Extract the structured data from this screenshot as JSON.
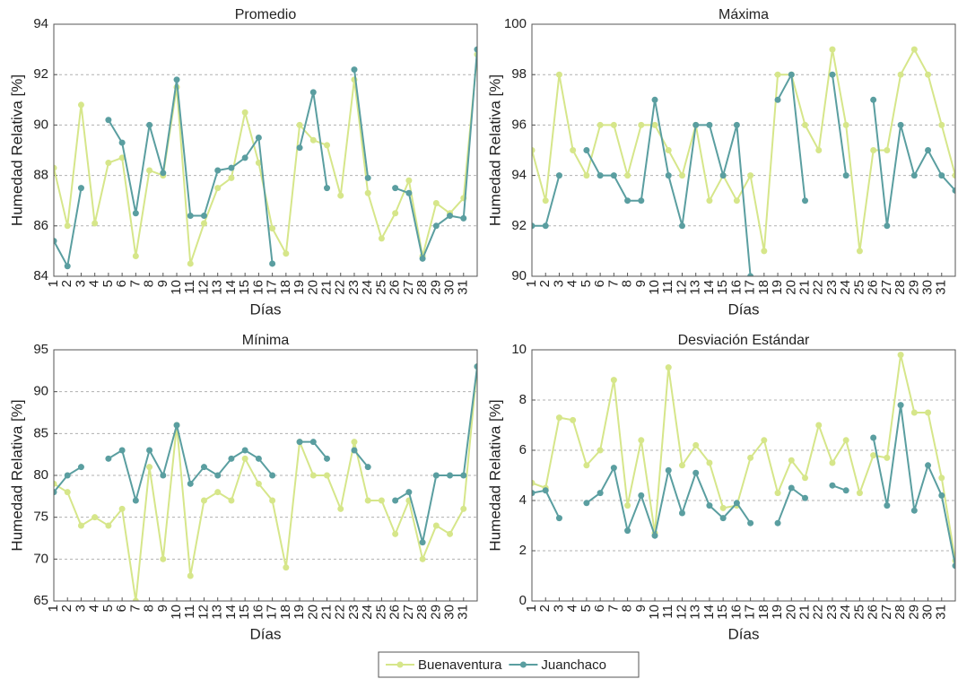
{
  "chart_data": [
    {
      "type": "line",
      "title": "Promedio",
      "xlabel": "Días",
      "ylabel": "Humedad Relativa [%]",
      "x": [
        1,
        2,
        3,
        4,
        5,
        6,
        7,
        8,
        9,
        10,
        11,
        12,
        13,
        14,
        15,
        16,
        17,
        18,
        19,
        20,
        21,
        22,
        23,
        24,
        25,
        26,
        27,
        28,
        29,
        30,
        31,
        32
      ],
      "xlim": [
        1,
        32
      ],
      "xticks": [
        1,
        2,
        3,
        4,
        5,
        6,
        7,
        8,
        9,
        10,
        11,
        12,
        13,
        14,
        15,
        16,
        17,
        18,
        19,
        20,
        21,
        22,
        23,
        24,
        25,
        26,
        27,
        28,
        29,
        30,
        31
      ],
      "ylim": [
        84,
        94
      ],
      "yticks": [
        84,
        86,
        88,
        90,
        92,
        94
      ],
      "grid": true,
      "series": [
        {
          "name": "Buenaventura",
          "color": "#d6e68a",
          "values": [
            88.3,
            86.0,
            90.8,
            86.1,
            88.5,
            88.7,
            84.8,
            88.2,
            88.0,
            91.5,
            84.5,
            86.1,
            87.5,
            87.9,
            90.5,
            88.5,
            85.9,
            84.9,
            90.0,
            89.4,
            89.2,
            87.2,
            91.8,
            87.3,
            85.5,
            86.5,
            87.8,
            84.8,
            86.9,
            86.5,
            87.1,
            92.8
          ]
        },
        {
          "name": "Juanchaco",
          "color": "#5a9ea0",
          "values": [
            85.4,
            84.4,
            87.5,
            null,
            90.2,
            89.3,
            86.5,
            90.0,
            88.1,
            91.8,
            86.4,
            86.4,
            88.2,
            88.3,
            88.7,
            89.5,
            84.5,
            null,
            89.1,
            91.3,
            87.5,
            null,
            92.2,
            87.9,
            null,
            87.5,
            87.3,
            84.7,
            86.0,
            86.4,
            86.3,
            93.0
          ]
        }
      ]
    },
    {
      "type": "line",
      "title": "Máxima",
      "xlabel": "Días",
      "ylabel": "Humedad Relativa [%]",
      "x": [
        1,
        2,
        3,
        4,
        5,
        6,
        7,
        8,
        9,
        10,
        11,
        12,
        13,
        14,
        15,
        16,
        17,
        18,
        19,
        20,
        21,
        22,
        23,
        24,
        25,
        26,
        27,
        28,
        29,
        30,
        31,
        32
      ],
      "xlim": [
        1,
        32
      ],
      "xticks": [
        1,
        2,
        3,
        4,
        5,
        6,
        7,
        8,
        9,
        10,
        11,
        12,
        13,
        14,
        15,
        16,
        17,
        18,
        19,
        20,
        21,
        22,
        23,
        24,
        25,
        26,
        27,
        28,
        29,
        30,
        31
      ],
      "ylim": [
        90,
        100
      ],
      "yticks": [
        90,
        92,
        94,
        96,
        98,
        100
      ],
      "grid": true,
      "series": [
        {
          "name": "Buenaventura",
          "color": "#d6e68a",
          "values": [
            95,
            93,
            98,
            95,
            94,
            96,
            96,
            94,
            96,
            96,
            95,
            94,
            96,
            93,
            94,
            93,
            94,
            91,
            98,
            98,
            96,
            95,
            99,
            96,
            91,
            95,
            95,
            98,
            99,
            98,
            96,
            94
          ]
        },
        {
          "name": "Juanchaco",
          "color": "#5a9ea0",
          "values": [
            92,
            92,
            94,
            null,
            95,
            94,
            94,
            93,
            93,
            97,
            94,
            92,
            96,
            96,
            94,
            96,
            90,
            null,
            97,
            98,
            93,
            null,
            98,
            94,
            null,
            97,
            92,
            96,
            94,
            95,
            94,
            93.4
          ]
        }
      ]
    },
    {
      "type": "line",
      "title": "Mínima",
      "xlabel": "Días",
      "ylabel": "Humedad Relativa [%]",
      "x": [
        1,
        2,
        3,
        4,
        5,
        6,
        7,
        8,
        9,
        10,
        11,
        12,
        13,
        14,
        15,
        16,
        17,
        18,
        19,
        20,
        21,
        22,
        23,
        24,
        25,
        26,
        27,
        28,
        29,
        30,
        31,
        32
      ],
      "xlim": [
        1,
        32
      ],
      "xticks": [
        1,
        2,
        3,
        4,
        5,
        6,
        7,
        8,
        9,
        10,
        11,
        12,
        13,
        14,
        15,
        16,
        17,
        18,
        19,
        20,
        21,
        22,
        23,
        24,
        25,
        26,
        27,
        28,
        29,
        30,
        31
      ],
      "ylim": [
        65,
        95
      ],
      "yticks": [
        65,
        70,
        75,
        80,
        85,
        90,
        95
      ],
      "grid": true,
      "series": [
        {
          "name": "Buenaventura",
          "color": "#d6e68a",
          "values": [
            79,
            78,
            74,
            75,
            74,
            76,
            65,
            81,
            70,
            86,
            68,
            77,
            78,
            77,
            82,
            79,
            77,
            69,
            84,
            80,
            80,
            76,
            84,
            77,
            77,
            73,
            77,
            70,
            74,
            73,
            76,
            93
          ]
        },
        {
          "name": "Juanchaco",
          "color": "#5a9ea0",
          "values": [
            78,
            80,
            81,
            null,
            82,
            83,
            77,
            83,
            80,
            86,
            79,
            81,
            80,
            82,
            83,
            82,
            80,
            null,
            84,
            84,
            82,
            null,
            83,
            81,
            null,
            77,
            78,
            72,
            80,
            80,
            80,
            93
          ]
        }
      ]
    },
    {
      "type": "line",
      "title": "Desviación Estándar",
      "xlabel": "Días",
      "ylabel": "Humedad Relativa [%]",
      "x": [
        1,
        2,
        3,
        4,
        5,
        6,
        7,
        8,
        9,
        10,
        11,
        12,
        13,
        14,
        15,
        16,
        17,
        18,
        19,
        20,
        21,
        22,
        23,
        24,
        25,
        26,
        27,
        28,
        29,
        30,
        31,
        32
      ],
      "xlim": [
        1,
        32
      ],
      "xticks": [
        1,
        2,
        3,
        4,
        5,
        6,
        7,
        8,
        9,
        10,
        11,
        12,
        13,
        14,
        15,
        16,
        17,
        18,
        19,
        20,
        21,
        22,
        23,
        24,
        25,
        26,
        27,
        28,
        29,
        30,
        31
      ],
      "ylim": [
        0,
        10
      ],
      "yticks": [
        0,
        2,
        4,
        6,
        8,
        10
      ],
      "grid": true,
      "series": [
        {
          "name": "Buenaventura",
          "color": "#d6e68a",
          "values": [
            4.7,
            4.5,
            7.3,
            7.2,
            5.4,
            6.0,
            8.8,
            3.8,
            6.4,
            2.7,
            9.3,
            5.4,
            6.2,
            5.5,
            3.7,
            3.8,
            5.7,
            6.4,
            4.3,
            5.6,
            4.9,
            7.0,
            5.5,
            6.4,
            4.3,
            5.8,
            5.7,
            9.8,
            7.5,
            7.5,
            4.9,
            1.6
          ]
        },
        {
          "name": "Juanchaco",
          "color": "#5a9ea0",
          "values": [
            4.3,
            4.4,
            3.3,
            null,
            3.9,
            4.3,
            5.3,
            2.8,
            4.2,
            2.6,
            5.2,
            3.5,
            5.1,
            3.8,
            3.3,
            3.9,
            3.1,
            null,
            3.1,
            4.5,
            4.1,
            null,
            4.6,
            4.4,
            null,
            6.5,
            3.8,
            7.8,
            3.6,
            5.4,
            4.2,
            1.4
          ]
        }
      ]
    }
  ]
}
